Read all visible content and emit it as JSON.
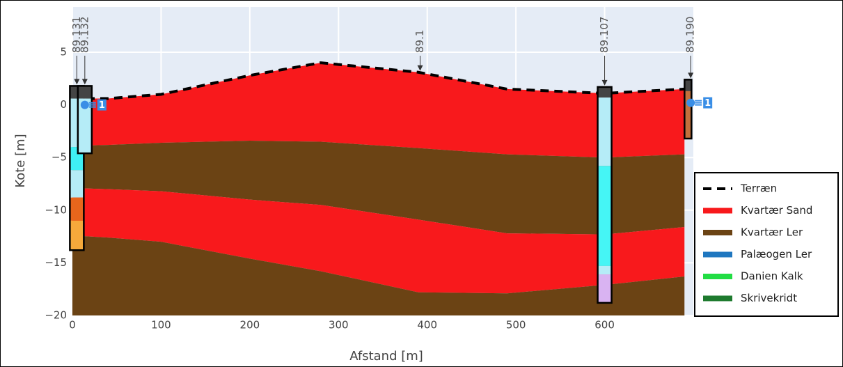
{
  "chart_data": {
    "type": "cross-section",
    "xlabel": "Afstand [m]",
    "ylabel": "Kote [m]",
    "xlim": [
      0,
      700
    ],
    "ylim": [
      -20,
      9.3
    ],
    "xticks": [
      0,
      100,
      200,
      300,
      400,
      500,
      600
    ],
    "yticks": [
      {
        "value": 5,
        "label": "5"
      },
      {
        "value": 0,
        "label": "0"
      },
      {
        "value": -5,
        "label": "−5"
      },
      {
        "value": -10,
        "label": "−10"
      },
      {
        "value": -15,
        "label": "−15"
      },
      {
        "value": -20,
        "label": "−20"
      }
    ],
    "grid": true,
    "legend": "right",
    "x": [
      0,
      40,
      100,
      200,
      280,
      390,
      490,
      600,
      690
    ],
    "series": [
      {
        "name": "Terræn",
        "color": "#000000",
        "values": [
          0.6,
          0.6,
          1.0,
          2.8,
          4.0,
          3.1,
          1.5,
          1.1,
          1.5
        ]
      },
      {
        "name": "Kvartær Sand",
        "color": "#f8191c"
      },
      {
        "name": "Kvartær Ler",
        "color": "#6b4314"
      },
      {
        "name": "Palæogen Ler",
        "color": "#1f77c0"
      },
      {
        "name": "Danien Kalk",
        "color": "#22dd44"
      },
      {
        "name": "Skrivekridt",
        "color": "#1e7a2e"
      }
    ],
    "layers": [
      {
        "series": 1,
        "bottom": [
          -3.9,
          -3.8,
          -3.6,
          -3.4,
          -3.5,
          -4.1,
          -4.7,
          -5.0,
          -4.7
        ]
      },
      {
        "series": 2,
        "bottom": [
          -7.9,
          -8.0,
          -8.2,
          -9.0,
          -9.5,
          -10.9,
          -12.2,
          -12.3,
          -11.6
        ]
      },
      {
        "series": 1,
        "bottom": [
          -12.4,
          -12.6,
          -13.0,
          -14.6,
          -15.8,
          -17.8,
          -17.9,
          -17.1,
          -16.3
        ]
      },
      {
        "series": 2,
        "bottom": [
          -20,
          -20,
          -20,
          -20,
          -20,
          -20,
          -20,
          -20,
          -20
        ]
      }
    ],
    "boreholes": [
      {
        "x": 5,
        "segments": [
          {
            "top": 1.8,
            "bottom": 0.6,
            "color": "#444444"
          },
          {
            "top": 0.6,
            "bottom": -4.0,
            "color": "#b5ecf7"
          },
          {
            "top": -4.0,
            "bottom": -6.2,
            "color": "#3ff0f5"
          },
          {
            "top": -6.2,
            "bottom": -8.8,
            "color": "#b5ecf7"
          },
          {
            "top": -8.8,
            "bottom": -11.0,
            "color": "#e8661c"
          },
          {
            "top": -11.0,
            "bottom": -13.8,
            "color": "#f6a93b"
          }
        ]
      },
      {
        "x": 14,
        "segments": [
          {
            "top": 1.8,
            "bottom": 0.6,
            "color": "#444444"
          },
          {
            "top": 0.6,
            "bottom": -4.6,
            "color": "#b5ecf7"
          }
        ]
      },
      {
        "x": 600,
        "segments": [
          {
            "top": 1.7,
            "bottom": 0.7,
            "color": "#444444"
          },
          {
            "top": 0.7,
            "bottom": -5.8,
            "color": "#b5ecf7"
          },
          {
            "top": -5.8,
            "bottom": -15.3,
            "color": "#45f5f5"
          },
          {
            "top": -15.3,
            "bottom": -16.1,
            "color": "#b5ecf7"
          },
          {
            "top": -16.1,
            "bottom": -18.8,
            "color": "#d9b3f2"
          }
        ]
      },
      {
        "x": 694,
        "segments": [
          {
            "top": 2.4,
            "bottom": 1.3,
            "color": "#444444"
          },
          {
            "top": 1.3,
            "bottom": -3.2,
            "color": "#c2703c"
          }
        ]
      }
    ],
    "annotations": [
      {
        "text": "89.131",
        "x": 5,
        "y": 1.8
      },
      {
        "text": "89.132",
        "x": 14,
        "y": 1.8
      },
      {
        "text": "89.1",
        "x": 392,
        "y": 3.1
      },
      {
        "text": "89.107",
        "x": 600,
        "y": 1.7
      },
      {
        "text": "89.190",
        "x": 697,
        "y": 2.4
      }
    ],
    "wells": [
      {
        "x": 14,
        "y": 0.0,
        "label": "1"
      },
      {
        "x": 697,
        "y": 0.2,
        "label": "1"
      }
    ]
  }
}
